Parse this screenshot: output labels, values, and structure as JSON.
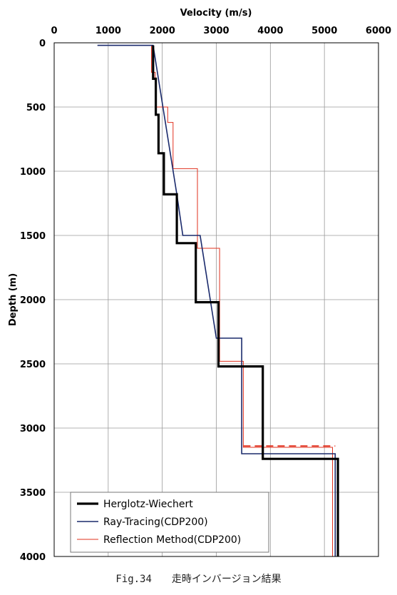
{
  "chart_data": {
    "type": "line",
    "xlabel": "Velocity (m/s)",
    "ylabel": "Depth (m)",
    "xlim": [
      0,
      6000
    ],
    "ylim": [
      0,
      4000
    ],
    "x_axis_position": "top",
    "y_inverted": true,
    "xticks": [
      "0",
      "1000",
      "2000",
      "3000",
      "4000",
      "5000",
      "6000"
    ],
    "yticks": [
      "0",
      "500",
      "1000",
      "1500",
      "2000",
      "2500",
      "3000",
      "3500",
      "4000"
    ],
    "grid": true,
    "legend_position": "bottom-left",
    "series": [
      {
        "name": "Herglotz-Wiechert",
        "color": "#000000",
        "points": [
          [
            1830,
            20
          ],
          [
            1830,
            280
          ],
          [
            1880,
            280
          ],
          [
            1880,
            560
          ],
          [
            1930,
            560
          ],
          [
            1930,
            860
          ],
          [
            2030,
            860
          ],
          [
            2030,
            1180
          ],
          [
            2270,
            1180
          ],
          [
            2270,
            1560
          ],
          [
            2620,
            1560
          ],
          [
            2620,
            2020
          ],
          [
            3040,
            2020
          ],
          [
            3040,
            2520
          ],
          [
            3860,
            2520
          ],
          [
            3860,
            3240
          ],
          [
            5250,
            3240
          ],
          [
            5250,
            4000
          ]
        ]
      },
      {
        "name": "Ray-Tracing(CDP200)",
        "color": "#1a2a6c",
        "points": [
          [
            800,
            20
          ],
          [
            1830,
            20
          ],
          [
            2270,
            1180
          ],
          [
            2380,
            1500
          ],
          [
            2700,
            1500
          ],
          [
            3000,
            2300
          ],
          [
            3470,
            2300
          ],
          [
            3470,
            3200
          ],
          [
            5200,
            3200
          ],
          [
            5200,
            4000
          ]
        ]
      },
      {
        "name": "Reflection Method(CDP200)",
        "color": "#e0301e",
        "points": [
          [
            1800,
            20
          ],
          [
            1800,
            230
          ],
          [
            1870,
            230
          ],
          [
            1870,
            500
          ],
          [
            2100,
            500
          ],
          [
            2100,
            620
          ],
          [
            2200,
            620
          ],
          [
            2200,
            980
          ],
          [
            2650,
            980
          ],
          [
            2650,
            1600
          ],
          [
            3060,
            1600
          ],
          [
            3060,
            2480
          ],
          [
            3500,
            2480
          ],
          [
            3500,
            3150
          ],
          [
            5150,
            3150
          ],
          [
            5150,
            4000
          ]
        ],
        "dashed_segment": [
          [
            3500,
            3140
          ],
          [
            5200,
            3140
          ]
        ]
      }
    ]
  },
  "caption": {
    "figure_number": "Fig.34",
    "title": "走時インバージョン結果"
  }
}
